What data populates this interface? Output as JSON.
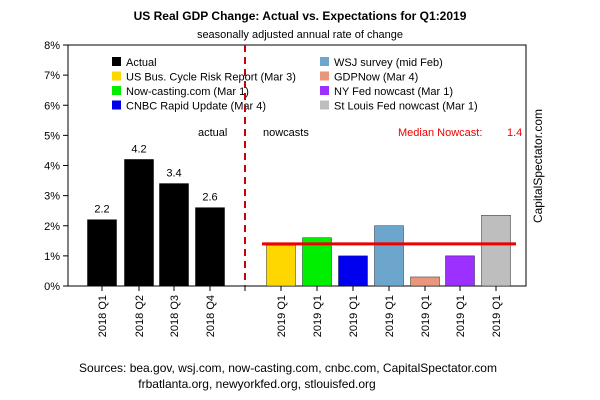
{
  "chart_data": {
    "type": "bar",
    "title": "US Real GDP Change: Actual vs. Expectations for Q1:2019",
    "subtitle": "seasonally adjusted annual rate of change",
    "ylim": [
      0,
      8
    ],
    "yticks": [
      "0%",
      "1%",
      "2%",
      "3%",
      "4%",
      "5%",
      "6%",
      "7%",
      "8%"
    ],
    "grid": false,
    "actual": {
      "label": "actual",
      "categories": [
        "2018 Q1",
        "2018 Q2",
        "2018 Q3",
        "2018 Q4"
      ],
      "values": [
        2.2,
        4.2,
        3.4,
        2.6
      ],
      "data_labels": [
        "2.2",
        "4.2",
        "3.4",
        "2.6"
      ],
      "color": "#000000"
    },
    "nowcasts": {
      "label": "nowcasts",
      "categories": [
        "2019 Q1",
        "2019 Q1",
        "2019 Q1",
        "2019 Q1",
        "2019 Q1",
        "2019 Q1",
        "2019 Q1"
      ],
      "values": [
        1.35,
        1.6,
        1.0,
        2.0,
        0.3,
        1.0,
        2.35
      ],
      "colors": [
        "#FFD700",
        "#00EE00",
        "#0000EE",
        "#6CA6CD",
        "#E9967A",
        "#9B30FF",
        "#BEBEBE"
      ]
    },
    "median": {
      "label": "Median Nowcast:",
      "value_label": "1.4",
      "value": 1.4,
      "color": "#EE0000"
    },
    "divider_color": "#CC0000",
    "legend": {
      "placement": "top",
      "entries": [
        {
          "name": "Actual",
          "color": "#000000"
        },
        {
          "name": "US Bus. Cycle Risk Report (Mar 3)",
          "color": "#FFD700"
        },
        {
          "name": "Now-casting.com (Mar 1)",
          "color": "#00EE00"
        },
        {
          "name": "CNBC Rapid Update (Mar 4)",
          "color": "#0000EE"
        },
        {
          "name": "WSJ survey (mid Feb)",
          "color": "#6CA6CD"
        },
        {
          "name": "GDPNow (Mar 4)",
          "color": "#E9967A"
        },
        {
          "name": "NY Fed nowcast (Mar 1)",
          "color": "#9B30FF"
        },
        {
          "name": "St Louis Fed nowcast (Mar 1)",
          "color": "#BEBEBE"
        }
      ]
    },
    "side_label": "CapitalSpectator.com",
    "sources": [
      "Sources: bea.gov, wsj.com, now-casting.com, cnbc.com, CapitalSpectator.com",
      "frbatlanta.org, newyorkfed.org, stlouisfed.org"
    ]
  }
}
